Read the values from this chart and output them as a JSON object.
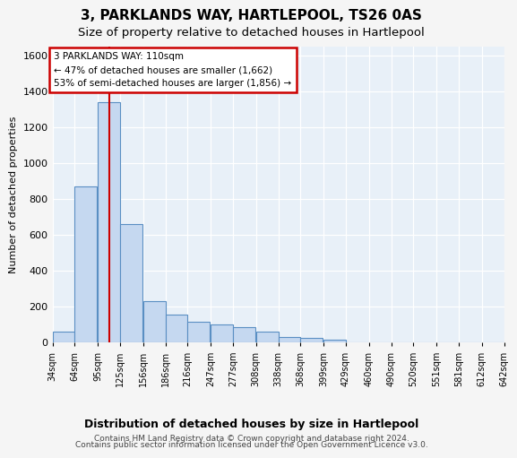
{
  "title": "3, PARKLANDS WAY, HARTLEPOOL, TS26 0AS",
  "subtitle": "Size of property relative to detached houses in Hartlepool",
  "xlabel_dist": "Distribution of detached houses by size in Hartlepool",
  "ylabel": "Number of detached properties",
  "annotation_line1": "3 PARKLANDS WAY: 110sqm",
  "annotation_line2": "← 47% of detached houses are smaller (1,662)",
  "annotation_line3": "53% of semi-detached houses are larger (1,856) →",
  "bin_edges": [
    34,
    64,
    95,
    125,
    156,
    186,
    216,
    247,
    277,
    308,
    338,
    368,
    399,
    429,
    460,
    490,
    520,
    551,
    581,
    612,
    642
  ],
  "bin_labels": [
    "34sqm",
    "64sqm",
    "95sqm",
    "125sqm",
    "156sqm",
    "186sqm",
    "216sqm",
    "247sqm",
    "277sqm",
    "308sqm",
    "338sqm",
    "368sqm",
    "399sqm",
    "429sqm",
    "460sqm",
    "490sqm",
    "520sqm",
    "551sqm",
    "581sqm",
    "612sqm",
    "642sqm"
  ],
  "bar_heights": [
    60,
    870,
    1340,
    660,
    230,
    155,
    115,
    100,
    85,
    60,
    30,
    25,
    15,
    0,
    0,
    0,
    0,
    0,
    0,
    0
  ],
  "bar_color": "#c5d8f0",
  "bar_edge_color": "#5a8fc3",
  "vline_color": "#cc0000",
  "vline_x": 110,
  "ylim": [
    0,
    1650
  ],
  "yticks": [
    0,
    200,
    400,
    600,
    800,
    1000,
    1200,
    1400,
    1600
  ],
  "box_color": "#cc0000",
  "footer_line1": "Contains HM Land Registry data © Crown copyright and database right 2024.",
  "footer_line2": "Contains public sector information licensed under the Open Government Licence v3.0.",
  "bg_color": "#e8f0f8",
  "grid_color": "#ffffff",
  "fig_bg": "#f5f5f5"
}
